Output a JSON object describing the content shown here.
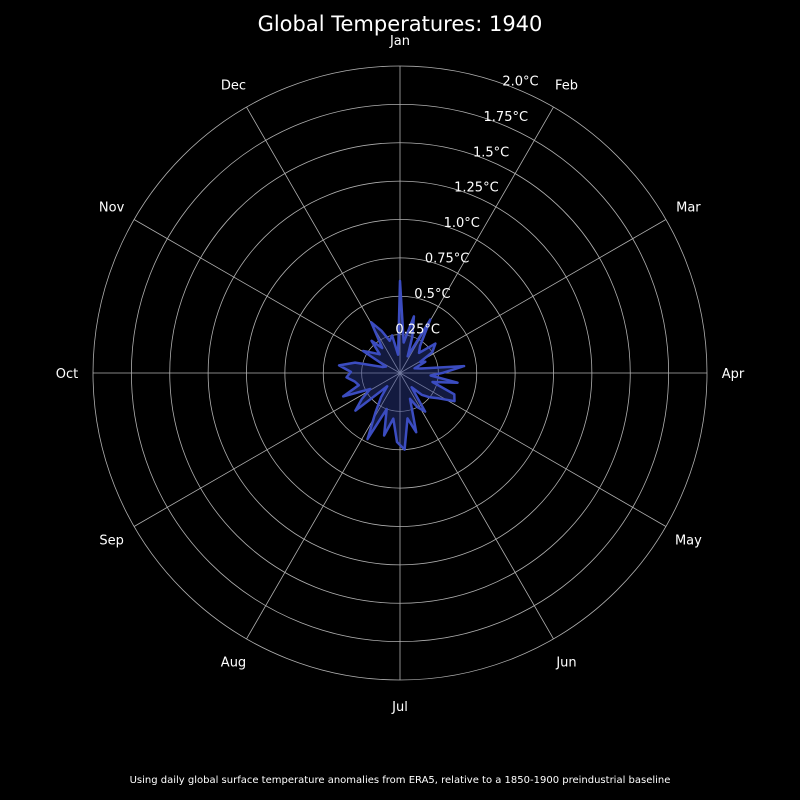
{
  "chart_data": {
    "type": "line",
    "projection": "polar",
    "title": "Global Temperatures: 1940",
    "caption": "Using daily global surface temperature anomalies from ERA5, relative to a 1850-1900 preindustrial baseline",
    "angular_ticks": [
      "Jan",
      "Feb",
      "Mar",
      "Apr",
      "May",
      "Jun",
      "Jul",
      "Aug",
      "Sep",
      "Oct",
      "Nov",
      "Dec"
    ],
    "radial_ticks": [
      "0.25°C",
      "0.5°C",
      "0.75°C",
      "1.0°C",
      "1.25°C",
      "1.5°C",
      "1.75°C",
      "2.0°C"
    ],
    "radial_tick_values": [
      0.25,
      0.5,
      0.75,
      1.0,
      1.25,
      1.5,
      1.75,
      2.0
    ],
    "rlim": [
      0,
      2.0
    ],
    "direction": "clockwise",
    "zero_location": "top",
    "grid": true,
    "colors": {
      "background": "#000000",
      "grid": "#b0b0b0",
      "series": "#3b4cc0",
      "fill": "#2b3a8c"
    },
    "series": [
      {
        "x_unit": "day of year",
        "x": [
          1,
          8,
          15,
          20,
          26,
          31,
          38,
          45,
          52,
          59,
          63,
          68,
          74,
          80,
          86,
          92,
          97,
          102,
          108,
          114,
          120,
          126,
          132,
          138,
          144,
          150,
          156,
          162,
          168,
          174,
          180,
          186,
          192,
          198,
          204,
          210,
          216,
          222,
          228,
          234,
          240,
          246,
          252,
          258,
          264,
          270,
          276,
          282,
          288,
          294,
          300,
          306,
          312,
          318,
          324,
          330,
          336,
          342,
          348,
          354,
          360,
          366
        ],
        "y": [
          0.6,
          0.2,
          0.38,
          0.25,
          0.12,
          0.4,
          0.22,
          0.18,
          0.3,
          0.25,
          0.15,
          0.18,
          0.1,
          0.14,
          0.42,
          0.28,
          0.2,
          0.38,
          0.22,
          0.38,
          0.4,
          0.3,
          0.25,
          0.2,
          0.12,
          0.3,
          0.25,
          0.18,
          0.4,
          0.3,
          0.5,
          0.45,
          0.3,
          0.42,
          0.25,
          0.48,
          0.3,
          0.2,
          0.12,
          0.38,
          0.3,
          0.22,
          0.4,
          0.28,
          0.3,
          0.35,
          0.32,
          0.4,
          0.3,
          0.12,
          0.1,
          0.28,
          0.22,
          0.18,
          0.28,
          0.2,
          0.38,
          0.3,
          0.22,
          0.25,
          0.12,
          0.6
        ]
      }
    ]
  }
}
